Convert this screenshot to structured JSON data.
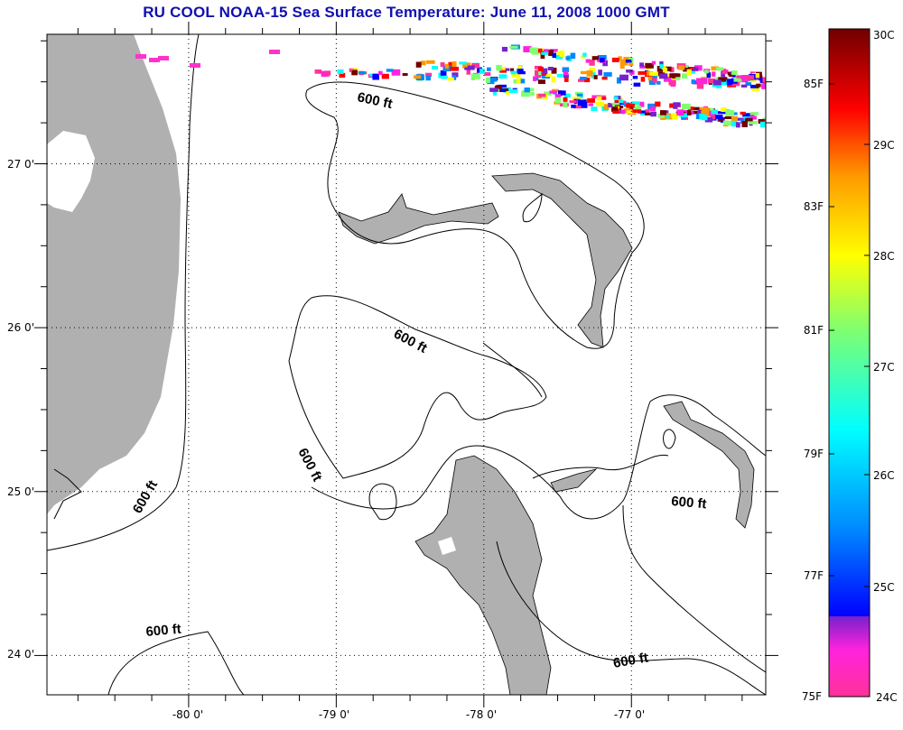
{
  "title": "RU COOL  NOAA-15  Sea Surface Temperature:  June 11, 2008 1000 GMT",
  "map": {
    "lon_labels": [
      "-80 0'",
      "-79 0'",
      "-78 0'",
      "-77 0'"
    ],
    "lon_values": [
      -80,
      -79,
      -78,
      -77
    ],
    "lat_labels": [
      "27 0'",
      "26 0'",
      "25 0'",
      "24 0'"
    ],
    "lat_values": [
      27,
      26,
      25,
      24
    ],
    "lon_range": [
      -80.96,
      -76.09
    ],
    "lat_range": [
      23.76,
      27.79
    ],
    "land_color": "#b0b0b0",
    "contour_labels": [
      "600 ft",
      "600 ft",
      "600 ft",
      "600 ft",
      "600 ft",
      "600 ft",
      "600 ft"
    ]
  },
  "colorbar": {
    "fahrenheit_labels": [
      "85F",
      "83F",
      "81F",
      "79F",
      "77F",
      "75F"
    ],
    "celsius_labels": [
      "30C",
      "29C",
      "28C",
      "27C",
      "26C",
      "25C",
      "24C"
    ],
    "range_c": [
      24,
      30
    ],
    "colors": [
      "#ff3399",
      "#ff22dd",
      "#7722cc",
      "#0000ff",
      "#0088ff",
      "#00ffff",
      "#80ff70",
      "#ffff00",
      "#ff9900",
      "#ff0000",
      "#700000"
    ]
  }
}
